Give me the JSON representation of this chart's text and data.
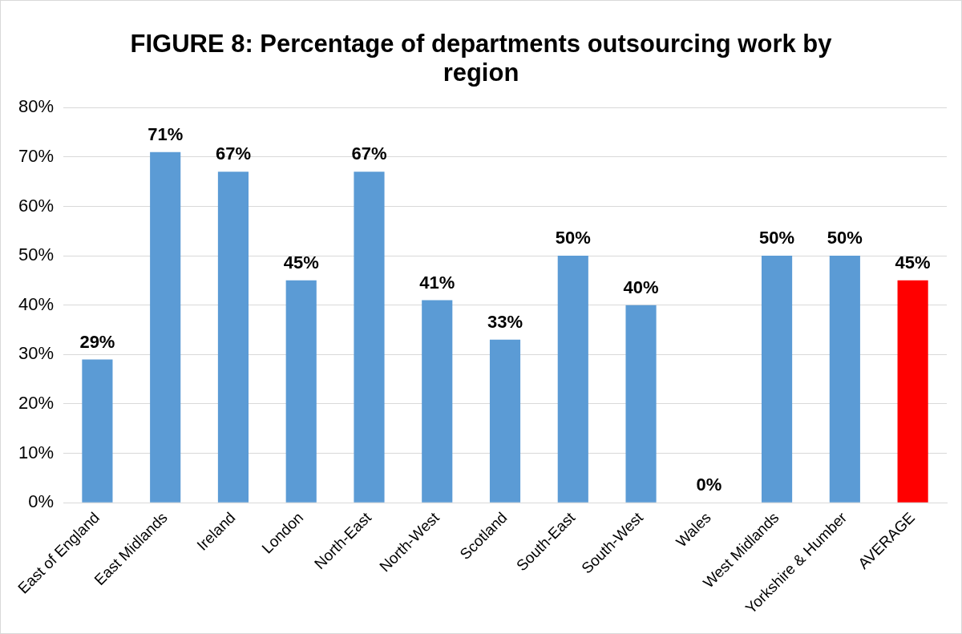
{
  "chart_data": {
    "type": "bar",
    "title": "FIGURE 8: Percentage of departments outsourcing work by region",
    "categories": [
      "East of England",
      "East Midlands",
      "Ireland",
      "London",
      "North-East",
      "North-West",
      "Scotland",
      "South-East",
      "South-West",
      "Wales",
      "West Midlands",
      "Yorkshire & Humber",
      "AVERAGE"
    ],
    "values": [
      29,
      71,
      67,
      45,
      67,
      41,
      33,
      50,
      40,
      0,
      50,
      50,
      45
    ],
    "value_labels": [
      "29%",
      "71%",
      "67%",
      "45%",
      "67%",
      "41%",
      "33%",
      "50%",
      "40%",
      "0%",
      "50%",
      "50%",
      "45%"
    ],
    "colors": [
      "#5b9bd5",
      "#5b9bd5",
      "#5b9bd5",
      "#5b9bd5",
      "#5b9bd5",
      "#5b9bd5",
      "#5b9bd5",
      "#5b9bd5",
      "#5b9bd5",
      "#5b9bd5",
      "#5b9bd5",
      "#5b9bd5",
      "#ff0000"
    ],
    "ylim": [
      0,
      80
    ],
    "yticks": [
      {
        "value": 0,
        "label": "0%"
      },
      {
        "value": 10,
        "label": "10%"
      },
      {
        "value": 20,
        "label": "20%"
      },
      {
        "value": 30,
        "label": "30%"
      },
      {
        "value": 40,
        "label": "40%"
      },
      {
        "value": 50,
        "label": "50%"
      },
      {
        "value": 60,
        "label": "60%"
      },
      {
        "value": 70,
        "label": "70%"
      },
      {
        "value": 80,
        "label": "80%"
      }
    ],
    "grid": "y",
    "legend": false
  }
}
